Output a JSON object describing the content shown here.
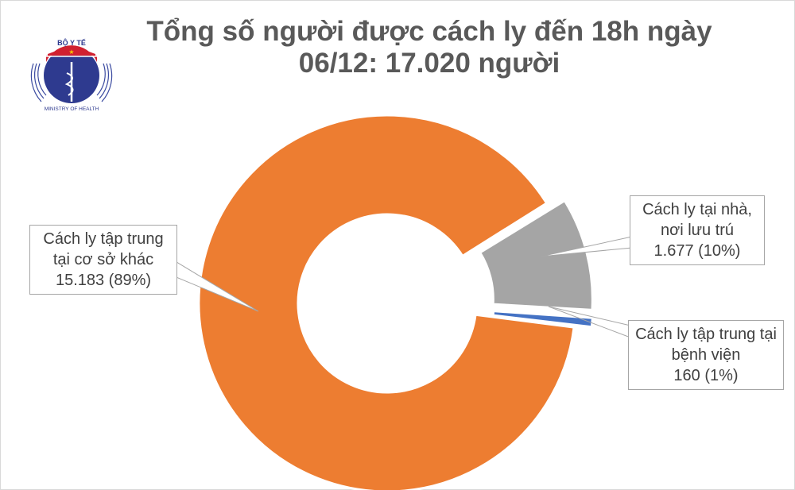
{
  "header": {
    "title_line1": "Tổng số người được cách ly đến 18h ngày",
    "title_line2": "06/12: 17.020 người",
    "logo_text_top": "BỘ Y TẾ",
    "logo_text_bottom": "MINISTRY OF HEALTH"
  },
  "chart_data": {
    "type": "doughnut",
    "title": "Tổng số người được cách ly đến 18h ngày 06/12: 17.020 người",
    "total": 17020,
    "first_slice_angle_deg": 97,
    "slices": [
      {
        "name": "Cách ly tập trung tại cơ sở khác",
        "value": 15183,
        "percent": 89,
        "color": "#ed7d31",
        "exploded": false,
        "label_lines": [
          "Cách ly tập trung",
          "tại cơ sở khác",
          "15.183 (89%)"
        ]
      },
      {
        "name": "Cách ly tại nhà, nơi lưu trú",
        "value": 1677,
        "percent": 10,
        "color": "#a5a5a5",
        "exploded": true,
        "label_lines": [
          "Cách ly tại nhà,",
          "nơi lưu trú",
          "1.677 (10%)"
        ]
      },
      {
        "name": "Cách ly tập trung tại bệnh viện",
        "value": 160,
        "percent": 1,
        "color": "#4472c4",
        "exploded": true,
        "label_lines": [
          "Cách ly tập trung tại",
          "bệnh viện",
          "160 (1%)"
        ]
      }
    ]
  }
}
